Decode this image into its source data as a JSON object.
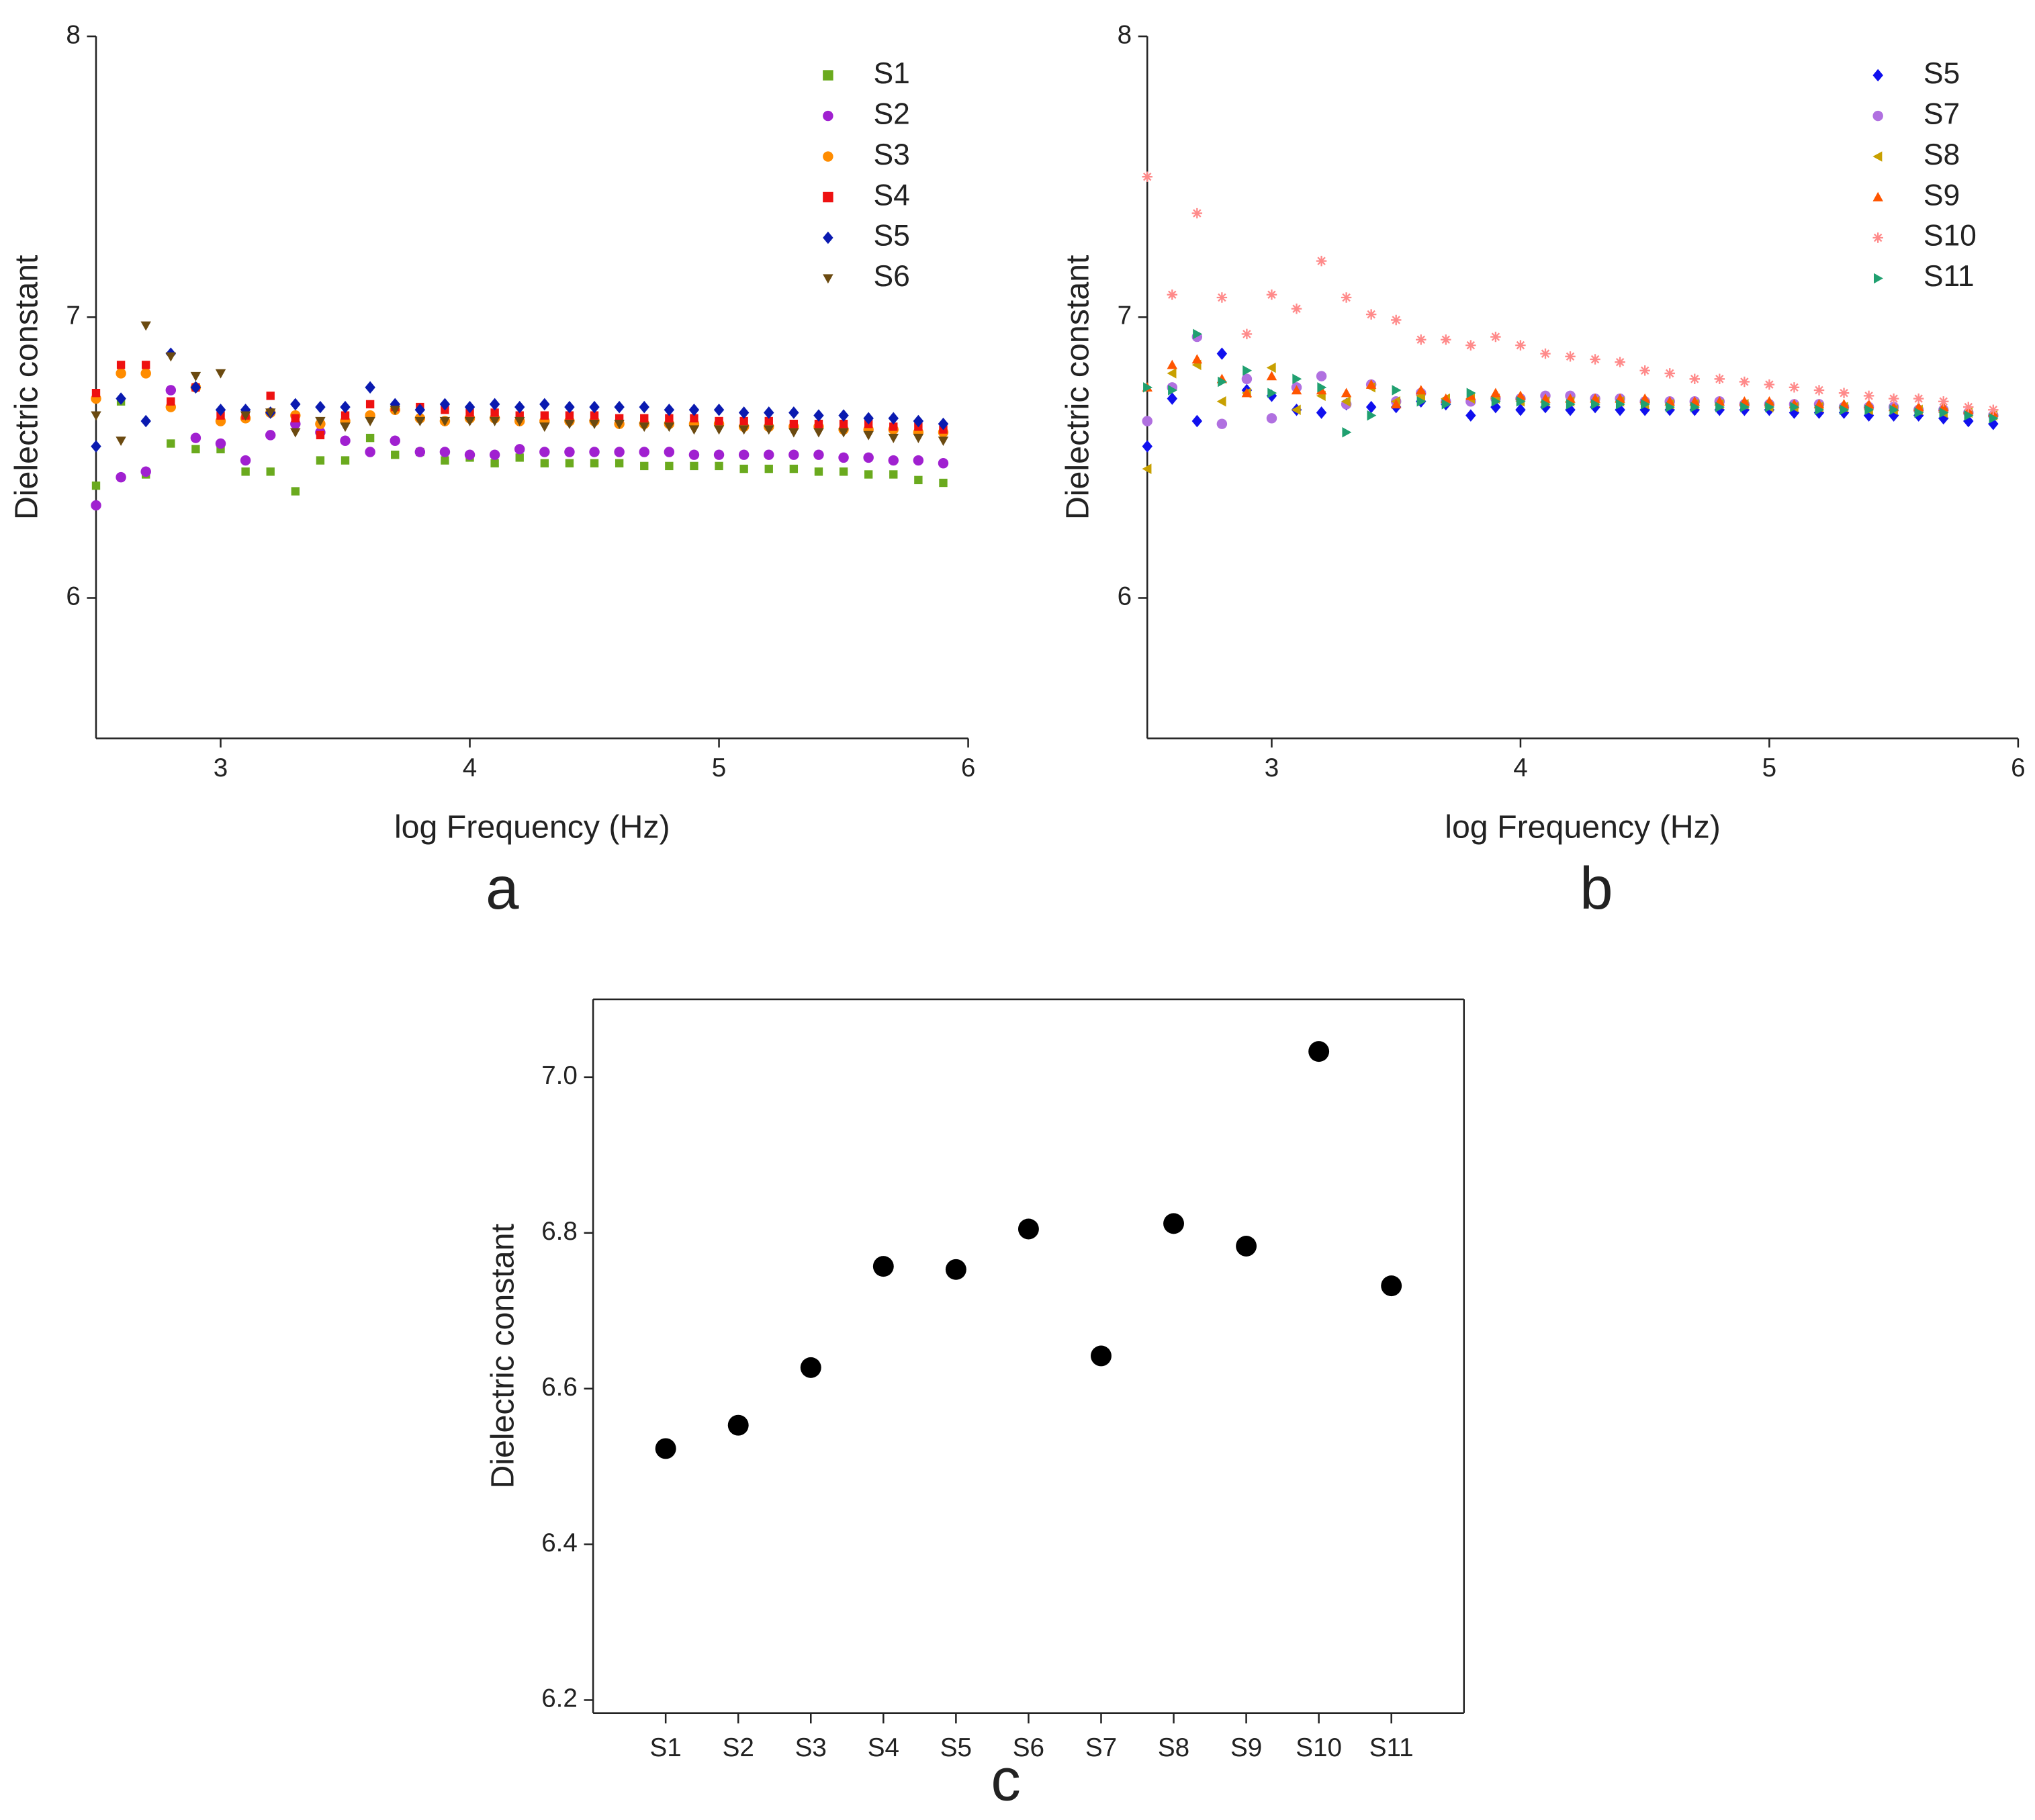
{
  "chart_data": {
    "charts": [
      {
        "type": "scatter",
        "label": "a",
        "xlabel": "log Frequency (Hz)",
        "ylabel": "Dielectric constant",
        "xlim": [
          2.5,
          6
        ],
        "xticks": [
          3,
          4,
          5,
          6
        ],
        "ylim": [
          5.5,
          8
        ],
        "yticks": [
          6,
          7,
          8
        ],
        "legend": "upper right",
        "x": [
          2.5,
          2.6,
          2.7,
          2.8,
          2.9,
          3.0,
          3.1,
          3.2,
          3.3,
          3.4,
          3.5,
          3.6,
          3.7,
          3.8,
          3.9,
          4.0,
          4.1,
          4.2,
          4.3,
          4.4,
          4.5,
          4.6,
          4.7,
          4.8,
          4.9,
          5.0,
          5.1,
          5.2,
          5.3,
          5.4,
          5.5,
          5.6,
          5.7,
          5.8,
          5.9
        ],
        "series": [
          {
            "name": "S1",
            "color": "#6aaa1e",
            "marker": "square",
            "values": [
              6.4,
              6.7,
              6.44,
              6.55,
              6.53,
              6.53,
              6.45,
              6.45,
              6.38,
              6.49,
              6.49,
              6.57,
              6.51,
              6.52,
              6.49,
              6.5,
              6.48,
              6.5,
              6.48,
              6.48,
              6.48,
              6.48,
              6.47,
              6.47,
              6.47,
              6.47,
              6.46,
              6.46,
              6.46,
              6.45,
              6.45,
              6.44,
              6.44,
              6.42,
              6.41
            ]
          },
          {
            "name": "S2",
            "color": "#a020d0",
            "marker": "circle",
            "values": [
              6.33,
              6.43,
              6.45,
              6.74,
              6.57,
              6.55,
              6.49,
              6.58,
              6.62,
              6.59,
              6.56,
              6.52,
              6.56,
              6.52,
              6.52,
              6.51,
              6.51,
              6.53,
              6.52,
              6.52,
              6.52,
              6.52,
              6.52,
              6.52,
              6.51,
              6.51,
              6.51,
              6.51,
              6.51,
              6.51,
              6.5,
              6.5,
              6.49,
              6.49,
              6.48
            ]
          },
          {
            "name": "S3",
            "color": "#ff8c00",
            "marker": "circle",
            "values": [
              6.71,
              6.8,
              6.8,
              6.68,
              6.75,
              6.63,
              6.64,
              6.66,
              6.65,
              6.62,
              6.63,
              6.65,
              6.67,
              6.64,
              6.63,
              6.64,
              6.64,
              6.63,
              6.63,
              6.63,
              6.63,
              6.62,
              6.62,
              6.62,
              6.62,
              6.62,
              6.61,
              6.61,
              6.61,
              6.61,
              6.6,
              6.6,
              6.6,
              6.59,
              6.59
            ]
          },
          {
            "name": "S4",
            "color": "#ee1111",
            "marker": "square",
            "values": [
              6.73,
              6.83,
              6.83,
              6.7,
              6.75,
              6.65,
              6.65,
              6.72,
              6.64,
              6.58,
              6.65,
              6.69,
              6.68,
              6.68,
              6.67,
              6.66,
              6.66,
              6.65,
              6.65,
              6.65,
              6.65,
              6.64,
              6.64,
              6.64,
              6.64,
              6.63,
              6.63,
              6.63,
              6.62,
              6.62,
              6.62,
              6.62,
              6.61,
              6.61,
              6.6
            ]
          },
          {
            "name": "S5",
            "color": "#0a1ab0",
            "marker": "diamond",
            "values": [
              6.54,
              6.71,
              6.63,
              6.87,
              6.75,
              6.67,
              6.67,
              6.66,
              6.69,
              6.68,
              6.68,
              6.75,
              6.69,
              6.67,
              6.69,
              6.68,
              6.69,
              6.68,
              6.69,
              6.68,
              6.68,
              6.68,
              6.68,
              6.67,
              6.67,
              6.67,
              6.66,
              6.66,
              6.66,
              6.65,
              6.65,
              6.64,
              6.64,
              6.63,
              6.62
            ]
          },
          {
            "name": "S6",
            "color": "#6b4a10",
            "marker": "triangle-down",
            "values": [
              6.65,
              6.56,
              6.97,
              6.86,
              6.79,
              6.8,
              6.65,
              6.66,
              6.59,
              6.63,
              6.61,
              6.63,
              6.67,
              6.63,
              6.63,
              6.63,
              6.63,
              6.63,
              6.61,
              6.62,
              6.62,
              6.62,
              6.61,
              6.61,
              6.6,
              6.6,
              6.6,
              6.6,
              6.59,
              6.59,
              6.59,
              6.58,
              6.57,
              6.57,
              6.56
            ]
          }
        ]
      },
      {
        "type": "scatter",
        "label": "b",
        "xlabel": "log Frequency (Hz)",
        "ylabel": "Dielectric constant",
        "xlim": [
          2.5,
          6
        ],
        "xticks": [
          3,
          4,
          5,
          6
        ],
        "ylim": [
          5.5,
          8
        ],
        "yticks": [
          6,
          7,
          8
        ],
        "legend": "upper right",
        "x": [
          2.5,
          2.6,
          2.7,
          2.8,
          2.9,
          3.0,
          3.1,
          3.2,
          3.3,
          3.4,
          3.5,
          3.6,
          3.7,
          3.8,
          3.9,
          4.0,
          4.1,
          4.2,
          4.3,
          4.4,
          4.5,
          4.6,
          4.7,
          4.8,
          4.9,
          5.0,
          5.1,
          5.2,
          5.3,
          5.4,
          5.5,
          5.6,
          5.7,
          5.8,
          5.9
        ],
        "series": [
          {
            "name": "S5",
            "color": "#1010ee",
            "marker": "diamond",
            "values": [
              6.54,
              6.71,
              6.63,
              6.87,
              6.74,
              6.72,
              6.67,
              6.66,
              6.69,
              6.68,
              6.68,
              6.7,
              6.69,
              6.65,
              6.68,
              6.67,
              6.68,
              6.67,
              6.68,
              6.67,
              6.67,
              6.67,
              6.67,
              6.67,
              6.67,
              6.67,
              6.66,
              6.66,
              6.66,
              6.65,
              6.65,
              6.65,
              6.64,
              6.63,
              6.62
            ]
          },
          {
            "name": "S7",
            "color": "#b070e0",
            "marker": "circle",
            "values": [
              6.63,
              6.75,
              6.93,
              6.62,
              6.78,
              6.64,
              6.75,
              6.79,
              6.69,
              6.76,
              6.7,
              6.73,
              6.7,
              6.7,
              6.71,
              6.71,
              6.72,
              6.72,
              6.71,
              6.71,
              6.7,
              6.7,
              6.7,
              6.7,
              6.69,
              6.69,
              6.69,
              6.69,
              6.68,
              6.68,
              6.68,
              6.67,
              6.67,
              6.66,
              6.65
            ]
          },
          {
            "name": "S8",
            "color": "#c8a000",
            "marker": "triangle-left",
            "values": [
              6.46,
              6.8,
              6.83,
              6.7,
              6.73,
              6.82,
              6.67,
              6.72,
              6.7,
              6.75,
              6.7,
              6.72,
              6.71,
              6.71,
              6.71,
              6.7,
              6.7,
              6.7,
              6.7,
              6.7,
              6.69,
              6.69,
              6.69,
              6.69,
              6.69,
              6.68,
              6.68,
              6.68,
              6.68,
              6.67,
              6.67,
              6.67,
              6.66,
              6.66,
              6.65
            ]
          },
          {
            "name": "S9",
            "color": "#ff5500",
            "marker": "triangle-up",
            "values": [
              6.75,
              6.83,
              6.85,
              6.78,
              6.73,
              6.79,
              6.74,
              6.74,
              6.73,
              6.76,
              6.69,
              6.74,
              6.71,
              6.72,
              6.73,
              6.72,
              6.71,
              6.71,
              6.71,
              6.71,
              6.71,
              6.7,
              6.7,
              6.7,
              6.7,
              6.7,
              6.69,
              6.69,
              6.69,
              6.69,
              6.68,
              6.68,
              6.68,
              6.67,
              6.66
            ]
          },
          {
            "name": "S10",
            "color": "#ff8a8a",
            "marker": "star",
            "values": [
              7.5,
              7.08,
              7.37,
              7.07,
              6.94,
              7.08,
              7.03,
              7.2,
              7.07,
              7.01,
              6.99,
              6.92,
              6.92,
              6.9,
              6.93,
              6.9,
              6.87,
              6.86,
              6.85,
              6.84,
              6.81,
              6.8,
              6.78,
              6.78,
              6.77,
              6.76,
              6.75,
              6.74,
              6.73,
              6.72,
              6.71,
              6.71,
              6.7,
              6.68,
              6.67
            ]
          },
          {
            "name": "S11",
            "color": "#20a070",
            "marker": "triangle-right",
            "values": [
              6.75,
              6.74,
              6.94,
              6.77,
              6.81,
              6.73,
              6.78,
              6.75,
              6.59,
              6.65,
              6.74,
              6.7,
              6.69,
              6.73,
              6.7,
              6.7,
              6.69,
              6.69,
              6.69,
              6.69,
              6.69,
              6.68,
              6.68,
              6.68,
              6.68,
              6.68,
              6.68,
              6.67,
              6.67,
              6.67,
              6.67,
              6.66,
              6.66,
              6.65,
              6.64
            ]
          }
        ]
      },
      {
        "type": "scatter",
        "label": "c",
        "ylabel": "Dielectric constant",
        "ylim": [
          6.2,
          7.1
        ],
        "yticks": [
          6.2,
          6.4,
          6.6,
          6.8,
          {
            "value": 7.0,
            "label": "7.0"
          }
        ],
        "categories": [
          "S1",
          "S2",
          "S3",
          "S4",
          "S5",
          "S6",
          "S7",
          "S8",
          "S9",
          "S10",
          "S11"
        ],
        "color": "#000000",
        "marker": "circle",
        "values": [
          6.523,
          6.553,
          6.627,
          6.757,
          6.753,
          6.805,
          6.642,
          6.812,
          6.783,
          7.033,
          6.732
        ]
      }
    ]
  }
}
